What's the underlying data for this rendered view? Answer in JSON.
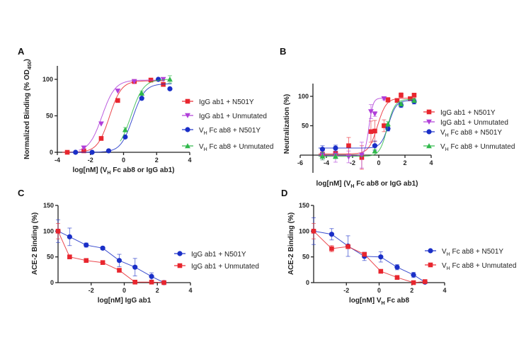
{
  "chart_data": [
    {
      "id": "A",
      "panel_label": "A",
      "type": "line",
      "fit": "sigmoid",
      "xlabel_parts": [
        "log[nM] (V",
        "H",
        " Fc ab8 or IgG ab1)"
      ],
      "ylabel_parts": [
        "Normalized Binding (% OD",
        "450",
        ")"
      ],
      "xlim": [
        -4,
        4
      ],
      "ylim": [
        0,
        120
      ],
      "xticks": [
        -4,
        -2,
        0,
        2,
        4
      ],
      "yticks": [
        0,
        50,
        100
      ],
      "legend_position": "right",
      "series": [
        {
          "name": "IgG ab1 + N501Y",
          "name_parts": [
            "IgG ab1 + N501Y"
          ],
          "color": "#e8262e",
          "marker": "square",
          "x": [
            -3.4,
            -2.4,
            -1.35,
            -0.35,
            0.65,
            1.65,
            2.4
          ],
          "y": [
            0,
            2,
            19,
            71,
            97,
            99,
            93
          ],
          "err": [
            0,
            0,
            0,
            0,
            0,
            0,
            0
          ],
          "fit": {
            "bottom": 0,
            "top": 98,
            "ec50": -0.85,
            "hill": 1.2
          }
        },
        {
          "name": "IgG ab1 + Unmutated",
          "name_parts": [
            "IgG ab1 + Unmutated"
          ],
          "color": "#b03fd9",
          "marker": "triangle-down",
          "x": [
            -2.4,
            -1.35,
            -0.35,
            0.65,
            2.4
          ],
          "y": [
            6,
            39,
            84,
            97,
            100
          ],
          "err": [
            0,
            0,
            0,
            0,
            0
          ],
          "fit": {
            "bottom": 0,
            "top": 99,
            "ec50": -1.3,
            "hill": 1.1
          }
        },
        {
          "name": "VH Fc ab8 + N501Y",
          "name_parts": [
            "V",
            "H",
            " Fc ab8 + N501Y"
          ],
          "color": "#1a2fc7",
          "marker": "circle",
          "x": [
            -2.9,
            -1.9,
            -0.9,
            0.1,
            1.1,
            2.1,
            2.8
          ],
          "y": [
            0,
            0,
            2,
            21,
            74,
            100,
            87
          ],
          "err": [
            0,
            0,
            0,
            0,
            0,
            0,
            0
          ],
          "fit": {
            "bottom": 0,
            "top": 94,
            "ec50": 0.55,
            "hill": 1.2
          }
        },
        {
          "name": "VH Fc ab8 + Unmutated",
          "name_parts": [
            "V",
            "H",
            " Fc ab8 + Unmutated"
          ],
          "color": "#2fb84a",
          "marker": "triangle-up",
          "x": [
            0.1,
            1.1,
            2.8
          ],
          "y": [
            31,
            81,
            100
          ],
          "err": [
            3,
            3,
            5
          ],
          "fit": {
            "bottom": 0,
            "top": 100,
            "ec50": 0.45,
            "hill": 1.15
          }
        }
      ]
    },
    {
      "id": "B",
      "panel_label": "B",
      "type": "line",
      "fit": "sigmoid",
      "xlabel_parts": [
        "log[nM] (V",
        "H",
        " Fc ab8 or IgG ab1)"
      ],
      "ylabel_parts": [
        "Neutralization (%)"
      ],
      "xlim": [
        -6,
        4
      ],
      "ylim": [
        -30,
        120
      ],
      "xticks": [
        -6,
        -4,
        -2,
        0,
        2,
        4
      ],
      "yticks": [
        50,
        100
      ],
      "legend_position": "right",
      "series": [
        {
          "name": "IgG ab1 + N501Y",
          "name_parts": [
            "IgG ab1 + N501Y"
          ],
          "color": "#e8262e",
          "marker": "square",
          "x": [
            -4.3,
            -3.3,
            -2.3,
            -1.3,
            -0.6,
            -0.3,
            0.4,
            0.7,
            1.4,
            1.7,
            2.4,
            2.7
          ],
          "y": [
            1,
            3,
            16,
            -4,
            40,
            41,
            50,
            94,
            93,
            102,
            96,
            102
          ],
          "err": [
            5,
            8,
            14,
            20,
            18,
            18,
            10,
            4,
            3,
            4,
            3,
            3
          ],
          "fit": {
            "bottom": 2,
            "top": 97,
            "ec50": -0.1,
            "hill": 1.3
          }
        },
        {
          "name": "IgG ab1 + Unmutated",
          "name_parts": [
            "IgG ab1 + Unmutated"
          ],
          "color": "#b03fd9",
          "marker": "triangle-down",
          "x": [
            -4.3,
            -3.3,
            -2.3,
            -1.3,
            -0.6,
            -0.3,
            0.4
          ],
          "y": [
            0,
            0,
            -3,
            0,
            74,
            70,
            96
          ],
          "err": [
            8,
            12,
            10,
            22,
            12,
            4,
            2
          ],
          "fit": {
            "bottom": -1,
            "top": 97,
            "ec50": -0.75,
            "hill": 2.8
          }
        },
        {
          "name": "VH Fc ab8 + N501Y",
          "name_parts": [
            "V",
            "H",
            " Fc ab8 + N501Y"
          ],
          "color": "#1a2fc7",
          "marker": "circle",
          "x": [
            -4.3,
            -3.3,
            -0.3,
            0.7,
            1.7,
            2.7
          ],
          "y": [
            10,
            12,
            16,
            45,
            85,
            91
          ],
          "err": [
            6,
            5,
            8,
            4,
            4,
            4
          ],
          "fit": {
            "bottom": 12,
            "top": 93,
            "ec50": 0.75,
            "hill": 1.5
          }
        },
        {
          "name": "VH Fc ab8 + Unmutated",
          "name_parts": [
            "V",
            "H",
            " Fc ab8 + Unmutated"
          ],
          "color": "#2fb84a",
          "marker": "triangle-up",
          "x": [
            -4.3,
            -3.3,
            -0.3,
            0.7,
            1.7,
            2.7
          ],
          "y": [
            -2,
            -2,
            7,
            53,
            87,
            93
          ],
          "err": [
            6,
            4,
            3,
            4,
            3,
            3
          ],
          "fit": {
            "bottom": -2,
            "top": 95,
            "ec50": 0.65,
            "hill": 1.5
          }
        }
      ]
    },
    {
      "id": "C",
      "panel_label": "C",
      "type": "line",
      "fit": "connect",
      "xlabel_parts": [
        "log[nM] IgG ab1"
      ],
      "ylabel_parts": [
        "ACE-2 Binding (%)"
      ],
      "xlim": [
        -4,
        4
      ],
      "ylim": [
        0,
        150
      ],
      "xticks": [
        -2,
        0,
        2,
        4
      ],
      "yticks": [
        0,
        50,
        100,
        150
      ],
      "legend_position": "right",
      "series": [
        {
          "name": "IgG ab1 + N501Y",
          "name_parts": [
            "IgG ab1 + N501Y"
          ],
          "color": "#1a2fc7",
          "marker": "circle",
          "x": [
            -4,
            -3.3,
            -2.3,
            -1.3,
            -0.3,
            0.65,
            1.65,
            2.4
          ],
          "y": [
            100,
            89,
            73,
            67,
            43,
            30,
            12,
            0
          ],
          "err": [
            22,
            17,
            4,
            3,
            12,
            17,
            7,
            0
          ]
        },
        {
          "name": "IgG ab1 + Unmutated",
          "name_parts": [
            "IgG ab1 + Unmutated"
          ],
          "color": "#e8262e",
          "marker": "square",
          "x": [
            -4,
            -3.3,
            -2.3,
            -1.3,
            -0.3,
            0.65,
            1.65,
            2.4
          ],
          "y": [
            100,
            50,
            43,
            39,
            24,
            1,
            1,
            0
          ],
          "err": [
            15,
            0,
            0,
            0,
            0,
            0,
            0,
            0
          ]
        }
      ]
    },
    {
      "id": "D",
      "panel_label": "D",
      "type": "line",
      "fit": "connect",
      "xlabel_parts": [
        "log[nM] V",
        "H",
        " Fc ab8"
      ],
      "ylabel_parts": [
        "ACE-2 Binding (%)"
      ],
      "xlim": [
        -4,
        4
      ],
      "ylim": [
        0,
        150
      ],
      "xticks": [
        -2,
        0,
        2,
        4
      ],
      "yticks": [
        0,
        50,
        100,
        150
      ],
      "legend_position": "right",
      "series": [
        {
          "name": "VH Fc ab8 + N501Y",
          "name_parts": [
            "V",
            "H",
            " Fc ab8 + N501Y"
          ],
          "color": "#1a2fc7",
          "marker": "circle",
          "x": [
            -4,
            -2.9,
            -1.9,
            -0.9,
            0.1,
            1.1,
            2.1,
            2.8
          ],
          "y": [
            100,
            94,
            71,
            51,
            50,
            30,
            15,
            1
          ],
          "err": [
            26,
            11,
            20,
            8,
            10,
            5,
            5,
            0
          ]
        },
        {
          "name": "VH Fc ab8 + Unmutated",
          "name_parts": [
            "V",
            "H",
            " Fc ab8 + Unmutated"
          ],
          "color": "#e8262e",
          "marker": "square",
          "x": [
            -4,
            -2.9,
            -1.9,
            -0.9,
            0.1,
            1.1,
            2.1,
            2.8
          ],
          "y": [
            100,
            66,
            70,
            55,
            22,
            10,
            0,
            2
          ],
          "err": [
            15,
            6,
            4,
            3,
            3,
            0,
            0,
            0
          ]
        }
      ]
    }
  ]
}
